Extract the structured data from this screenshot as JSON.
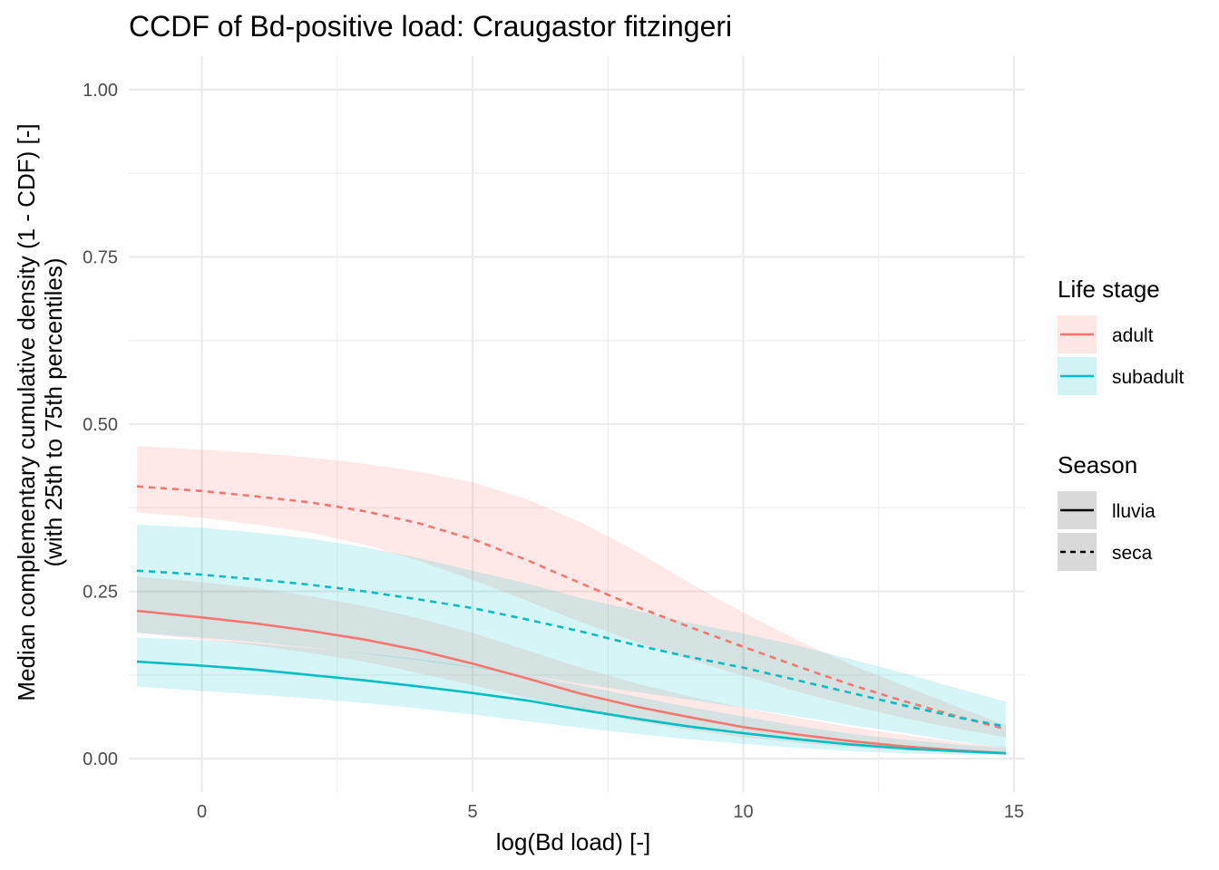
{
  "chart_data": {
    "type": "line",
    "title": "CCDF of Bd-positive load: Craugastor fitzingeri",
    "xlabel": "log(Bd load) [-]",
    "ylabel_lines": [
      "Median complementary cumulative density (1 - CDF) [-]",
      "(with 25th to 75th percentiles)"
    ],
    "xlim": [
      -1.35,
      15.2
    ],
    "ylim": [
      -0.05,
      1.05
    ],
    "x_ticks": [
      0,
      5,
      10,
      15
    ],
    "x_tick_labels": [
      "0",
      "5",
      "10",
      "15"
    ],
    "y_ticks": [
      0,
      0.25,
      0.5,
      0.75,
      1.0
    ],
    "y_tick_labels": [
      "0.00",
      "0.25",
      "0.50",
      "0.75",
      "1.00"
    ],
    "grid": true,
    "legend_position": "right",
    "colors": {
      "adult": "#F8766D",
      "subadult": "#00BFC4"
    },
    "legends": [
      {
        "title": "Life stage",
        "kind": "color",
        "items": [
          {
            "label": "adult",
            "color": "#F8766D"
          },
          {
            "label": "subadult",
            "color": "#00BFC4"
          }
        ]
      },
      {
        "title": "Season",
        "kind": "linetype",
        "items": [
          {
            "label": "lluvia",
            "dash": "solid"
          },
          {
            "label": "seca",
            "dash": "dashed"
          }
        ]
      }
    ],
    "series": [
      {
        "life_stage": "adult",
        "season": "lluvia",
        "color": "#F8766D",
        "dash": "solid",
        "x": [
          -1.2,
          0,
          1,
          2,
          3,
          4,
          5,
          6,
          7,
          8,
          9,
          10,
          11,
          12,
          13,
          14,
          14.85
        ],
        "median": [
          0.221,
          0.211,
          0.202,
          0.191,
          0.178,
          0.162,
          0.142,
          0.12,
          0.097,
          0.078,
          0.062,
          0.047,
          0.036,
          0.026,
          0.018,
          0.012,
          0.008
        ],
        "lower": [
          0.188,
          0.178,
          0.169,
          0.158,
          0.145,
          0.128,
          0.11,
          0.091,
          0.072,
          0.056,
          0.043,
          0.032,
          0.024,
          0.017,
          0.012,
          0.008,
          0.006
        ],
        "upper": [
          0.272,
          0.264,
          0.255,
          0.243,
          0.228,
          0.21,
          0.188,
          0.162,
          0.136,
          0.113,
          0.093,
          0.076,
          0.061,
          0.047,
          0.035,
          0.024,
          0.017
        ]
      },
      {
        "life_stage": "subadult",
        "season": "lluvia",
        "color": "#00BFC4",
        "dash": "solid",
        "x": [
          -1.2,
          0,
          1,
          2,
          3,
          4,
          5,
          6,
          7,
          8,
          9,
          10,
          11,
          12,
          13,
          14,
          14.85
        ],
        "median": [
          0.145,
          0.139,
          0.133,
          0.125,
          0.117,
          0.108,
          0.098,
          0.087,
          0.073,
          0.06,
          0.048,
          0.038,
          0.029,
          0.021,
          0.015,
          0.011,
          0.008
        ],
        "lower": [
          0.108,
          0.101,
          0.096,
          0.09,
          0.083,
          0.075,
          0.066,
          0.056,
          0.046,
          0.037,
          0.029,
          0.022,
          0.016,
          0.011,
          0.008,
          0.006,
          0.005
        ],
        "upper": [
          0.181,
          0.177,
          0.172,
          0.165,
          0.158,
          0.149,
          0.138,
          0.125,
          0.109,
          0.093,
          0.077,
          0.063,
          0.049,
          0.037,
          0.028,
          0.021,
          0.016
        ]
      },
      {
        "life_stage": "adult",
        "season": "seca",
        "color": "#F8766D",
        "dash": "dashed",
        "x": [
          -1.2,
          0,
          1,
          2,
          3,
          4,
          5,
          6,
          7,
          8,
          9,
          10,
          11,
          12,
          13,
          14,
          14.85
        ],
        "median": [
          0.407,
          0.4,
          0.392,
          0.383,
          0.37,
          0.352,
          0.328,
          0.297,
          0.262,
          0.228,
          0.197,
          0.167,
          0.138,
          0.11,
          0.085,
          0.062,
          0.044
        ],
        "lower": [
          0.368,
          0.36,
          0.35,
          0.338,
          0.32,
          0.296,
          0.267,
          0.236,
          0.204,
          0.175,
          0.148,
          0.124,
          0.1,
          0.079,
          0.06,
          0.044,
          0.032
        ],
        "upper": [
          0.467,
          0.462,
          0.457,
          0.45,
          0.441,
          0.429,
          0.413,
          0.388,
          0.353,
          0.311,
          0.263,
          0.218,
          0.177,
          0.14,
          0.108,
          0.076,
          0.05
        ]
      },
      {
        "life_stage": "subadult",
        "season": "seca",
        "color": "#00BFC4",
        "dash": "dashed",
        "x": [
          -1.2,
          0,
          1,
          2,
          3,
          4,
          5,
          6,
          7,
          8,
          9,
          10,
          11,
          12,
          13,
          14,
          14.85
        ],
        "median": [
          0.281,
          0.275,
          0.268,
          0.26,
          0.25,
          0.238,
          0.225,
          0.208,
          0.19,
          0.17,
          0.152,
          0.136,
          0.117,
          0.098,
          0.079,
          0.061,
          0.048
        ],
        "lower": [
          0.188,
          0.181,
          0.174,
          0.166,
          0.157,
          0.147,
          0.136,
          0.125,
          0.112,
          0.1,
          0.088,
          0.076,
          0.063,
          0.05,
          0.038,
          0.025,
          0.016
        ],
        "upper": [
          0.35,
          0.345,
          0.338,
          0.329,
          0.316,
          0.3,
          0.281,
          0.262,
          0.24,
          0.222,
          0.203,
          0.187,
          0.169,
          0.148,
          0.127,
          0.104,
          0.085
        ]
      }
    ]
  }
}
